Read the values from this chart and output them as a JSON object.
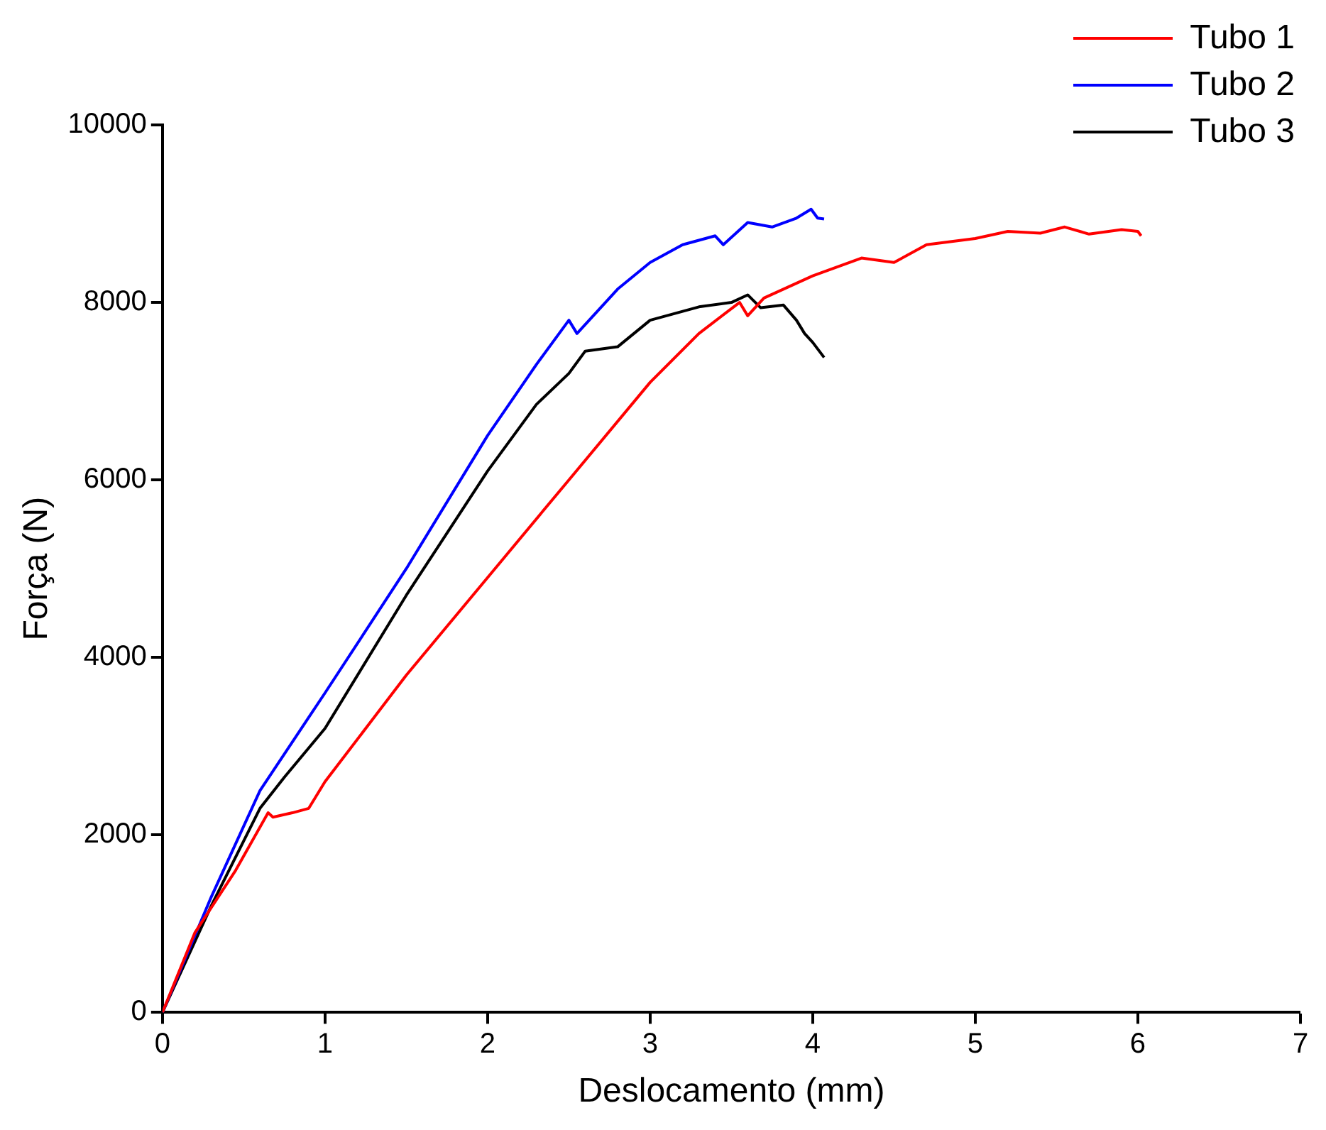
{
  "chart_data": {
    "type": "line",
    "xlabel": "Deslocamento (mm)",
    "ylabel": "Força (N)",
    "xlim": [
      0,
      7
    ],
    "xticks": [
      0,
      1,
      2,
      3,
      4,
      5,
      6,
      7
    ],
    "ylim": [
      0,
      10000
    ],
    "yticks": [
      0,
      2000,
      4000,
      6000,
      8000,
      10000
    ],
    "grid": false,
    "legend": "top right",
    "marker": "none",
    "line_style": "solid",
    "series": [
      {
        "name": "Tubo 1",
        "color": "#ff0000",
        "x": [
          0,
          0.2,
          0.45,
          0.65,
          0.68,
          0.8,
          0.9,
          1.0,
          1.5,
          2.0,
          2.5,
          3.0,
          3.3,
          3.55,
          3.6,
          3.7,
          4.0,
          4.3,
          4.5,
          4.7,
          5.0,
          5.2,
          5.4,
          5.55,
          5.7,
          5.9,
          6.0,
          6.02
        ],
        "values": [
          0,
          900,
          1600,
          2250,
          2200,
          2250,
          2300,
          2600,
          3800,
          4900,
          6000,
          7100,
          7650,
          8000,
          7850,
          8050,
          8300,
          8500,
          8450,
          8650,
          8720,
          8800,
          8780,
          8850,
          8770,
          8820,
          8800,
          8750
        ]
      },
      {
        "name": "Tubo 2",
        "color": "#0000ff",
        "x": [
          0,
          0.3,
          0.6,
          1.0,
          1.5,
          2.0,
          2.3,
          2.5,
          2.55,
          2.8,
          3.0,
          3.2,
          3.4,
          3.45,
          3.6,
          3.75,
          3.9,
          3.99,
          4.03,
          4.07
        ],
        "values": [
          0,
          1300,
          2500,
          3600,
          5000,
          6500,
          7300,
          7800,
          7650,
          8150,
          8450,
          8650,
          8750,
          8650,
          8900,
          8850,
          8950,
          9050,
          8950,
          8940
        ]
      },
      {
        "name": "Tubo 3",
        "color": "#000000",
        "x": [
          0,
          0.3,
          0.6,
          0.75,
          1.0,
          1.5,
          2.0,
          2.3,
          2.5,
          2.6,
          2.8,
          3.0,
          3.2,
          3.3,
          3.5,
          3.6,
          3.68,
          3.82,
          3.9,
          3.95,
          4.0,
          4.07
        ],
        "values": [
          0,
          1200,
          2300,
          2650,
          3200,
          4700,
          6100,
          6850,
          7200,
          7450,
          7500,
          7800,
          7900,
          7950,
          8000,
          8085,
          7940,
          7970,
          7800,
          7650,
          7550,
          7380
        ]
      }
    ]
  }
}
